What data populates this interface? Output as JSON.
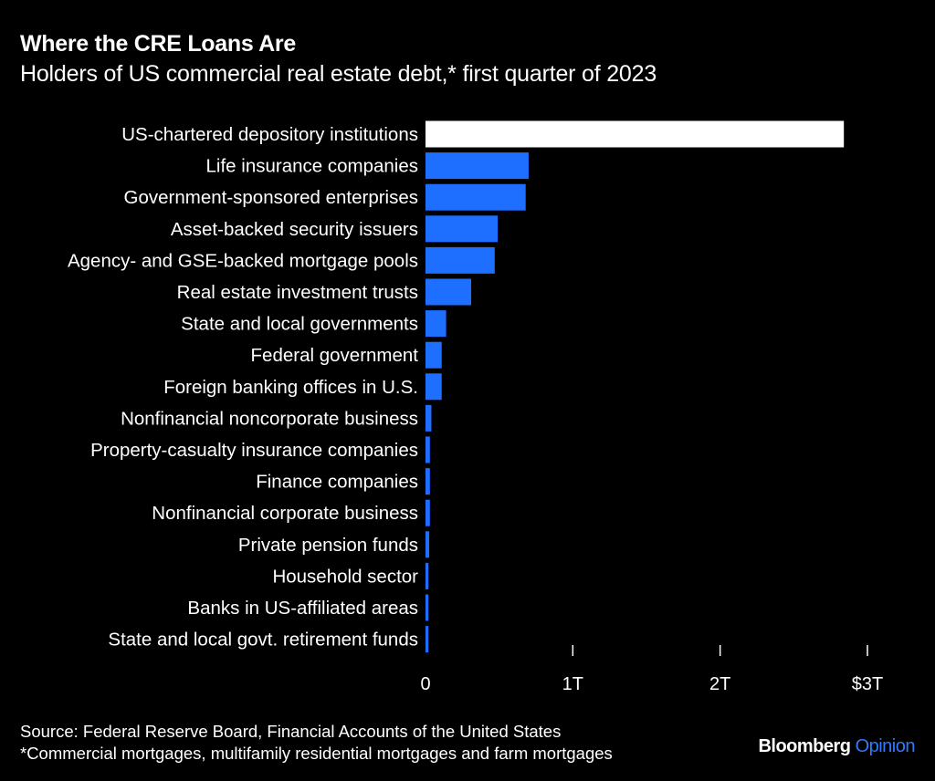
{
  "header": {
    "title": "Where the CRE Loans Are",
    "subtitle": "Holders of US commercial real estate debt,* first quarter of 2023"
  },
  "footer": {
    "source": "Source: Federal Reserve Board, Financial Accounts of the United States",
    "footnote": "*Commercial mortgages, multifamily residential mortgages and farm mortgages"
  },
  "brand": {
    "name": "Bloomberg",
    "accent": "Opinion"
  },
  "colors": {
    "highlight_bar": "#ffffff",
    "bar": "#1e6eff",
    "background": "#000000",
    "brand_accent": "#2f7bff"
  },
  "chart_data": {
    "type": "bar",
    "orientation": "horizontal",
    "categories": [
      "US-chartered depository institutions",
      "Life insurance companies",
      "Government-sponsored enterprises",
      "Asset-backed security issuers",
      "Agency- and GSE-backed mortgage pools",
      "Real estate investment trusts",
      "State and local governments",
      "Federal government",
      "Foreign banking offices in U.S.",
      "Nonfinancial noncorporate business",
      "Property-casualty insurance companies",
      "Finance companies",
      "Nonfinancial corporate business",
      "Private pension funds",
      "Household sector",
      "Banks in US-affiliated areas",
      "State and local govt. retirement funds"
    ],
    "values": [
      2.84,
      0.7,
      0.68,
      0.49,
      0.47,
      0.31,
      0.14,
      0.11,
      0.11,
      0.04,
      0.03,
      0.03,
      0.03,
      0.025,
      0.02,
      0.02,
      0.02
    ],
    "highlight_index": 0,
    "xlim": [
      0,
      3
    ],
    "xticks": [
      0,
      1,
      2,
      3
    ],
    "xtick_labels": [
      "0",
      "1T",
      "2T",
      "$3T"
    ],
    "grid": false,
    "legend": "none"
  }
}
